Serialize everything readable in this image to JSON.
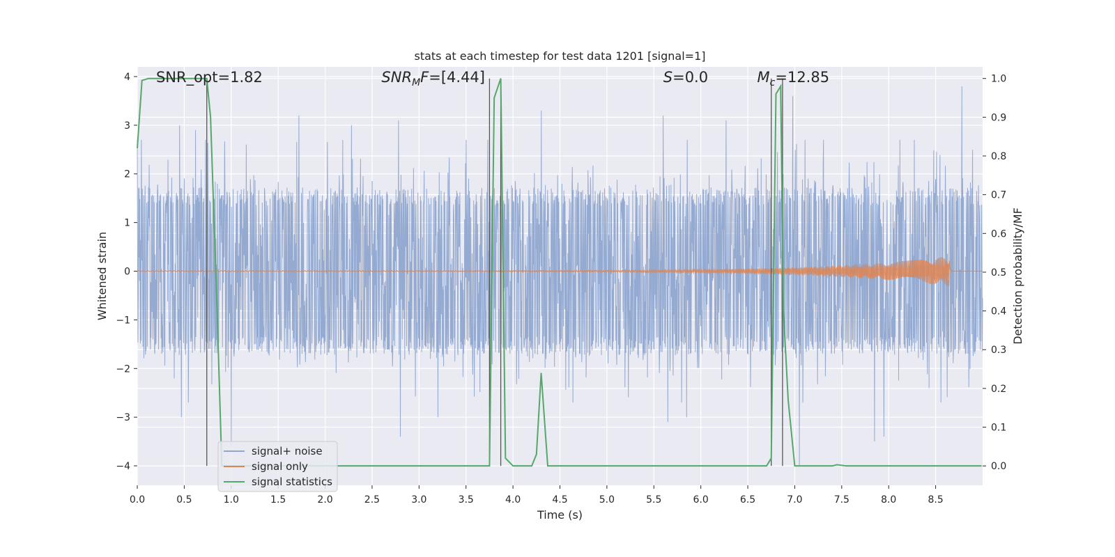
{
  "chart_data": {
    "type": "line",
    "title": "stats at each timestep for test data 1201 [signal=1]",
    "xlabel": "Time (s)",
    "ylabel_left": "Whitened strain",
    "ylabel_right": "Detection probability/MF",
    "xlim": [
      0.0,
      9.0
    ],
    "ylim_left": [
      -4.4,
      4.2
    ],
    "ylim_right": [
      -0.05,
      1.03
    ],
    "x_ticks": [
      0.0,
      0.5,
      1.0,
      1.5,
      2.0,
      2.5,
      3.0,
      3.5,
      4.0,
      4.5,
      5.0,
      5.5,
      6.0,
      6.5,
      7.0,
      7.5,
      8.0,
      8.5
    ],
    "x_tick_labels": [
      "0.0",
      "0.5",
      "1.0",
      "1.5",
      "2.0",
      "2.5",
      "3.0",
      "3.5",
      "4.0",
      "4.5",
      "5.0",
      "5.5",
      "6.0",
      "6.5",
      "7.0",
      "7.5",
      "8.0",
      "8.5"
    ],
    "y_left_ticks": [
      -4,
      -3,
      -2,
      -1,
      0,
      1,
      2,
      3,
      4
    ],
    "y_left_tick_labels": [
      "−4",
      "−3",
      "−2",
      "−1",
      "0",
      "1",
      "2",
      "3",
      "4"
    ],
    "y_right_ticks": [
      0.0,
      0.1,
      0.2,
      0.3,
      0.4,
      0.5,
      0.6,
      0.7,
      0.8,
      0.9,
      1.0
    ],
    "y_right_tick_labels": [
      "0.0",
      "0.1",
      "0.2",
      "0.3",
      "0.4",
      "0.5",
      "0.6",
      "0.7",
      "0.8",
      "0.9",
      "1.0"
    ],
    "grid": true,
    "legend_position": "lower-left",
    "series": [
      {
        "name": "signal+ noise",
        "color": "#8fa6cf",
        "axis": "left",
        "kind": "noise",
        "x_range": [
          0.0,
          9.0
        ],
        "typical_amplitude": 1.5,
        "peak_values": [
          {
            "x": 0.45,
            "y": 3.0
          },
          {
            "x": 0.62,
            "y": 2.9
          },
          {
            "x": 1.72,
            "y": 3.2
          },
          {
            "x": 2.28,
            "y": 3.0
          },
          {
            "x": 2.78,
            "y": 3.1
          },
          {
            "x": 4.3,
            "y": 3.3
          },
          {
            "x": 5.6,
            "y": 3.2
          },
          {
            "x": 6.27,
            "y": 3.1
          },
          {
            "x": 6.98,
            "y": 3.6
          },
          {
            "x": 8.78,
            "y": 3.8
          },
          {
            "x": 0.47,
            "y": -3.0
          },
          {
            "x": 2.8,
            "y": -3.4
          },
          {
            "x": 3.2,
            "y": -3.0
          },
          {
            "x": 5.65,
            "y": -3.1
          },
          {
            "x": 5.85,
            "y": -3.0
          },
          {
            "x": 7.05,
            "y": -4.0
          },
          {
            "x": 7.85,
            "y": -3.5
          },
          {
            "x": 7.95,
            "y": -3.4
          },
          {
            "x": 1.0,
            "y": -3.6
          }
        ]
      },
      {
        "name": "signal only",
        "color": "#dd8452",
        "axis": "left",
        "kind": "chirp",
        "x_range": [
          0.0,
          8.65
        ],
        "max_amplitude": 0.3
      },
      {
        "name": "signal statistics",
        "color": "#55a868",
        "axis": "right",
        "kind": "line",
        "x": [
          0.0,
          0.05,
          0.12,
          0.2,
          0.3,
          0.5,
          0.7,
          0.74,
          0.78,
          0.85,
          0.9,
          1.0,
          3.6,
          3.75,
          3.8,
          3.87,
          3.92,
          4.0,
          4.2,
          4.25,
          4.3,
          4.37,
          4.45,
          6.0,
          6.7,
          6.75,
          6.8,
          6.85,
          6.88,
          6.93,
          7.0,
          7.05,
          7.4,
          7.45,
          7.55,
          8.99
        ],
        "y": [
          0.82,
          0.995,
          1.0,
          1.0,
          1.0,
          1.0,
          1.0,
          1.0,
          0.9,
          0.4,
          0.0,
          0.0,
          0.0,
          0.0,
          0.95,
          1.0,
          0.02,
          0.0,
          0.0,
          0.03,
          0.24,
          0.0,
          0.0,
          0.0,
          0.0,
          0.02,
          0.96,
          0.98,
          0.4,
          0.17,
          0.0,
          0.0,
          0.0,
          0.003,
          0.0,
          0.0
        ]
      }
    ],
    "vertical_lines": [
      0.74,
      3.75,
      3.87,
      6.75,
      6.87
    ],
    "vertical_line_range_right": [
      0.0,
      1.0
    ],
    "annotations": [
      {
        "name": "snr-opt",
        "text": "SNR_opt=1.82",
        "x": 0.2,
        "y": 3.9
      },
      {
        "name": "snr-mf",
        "text": "SNR",
        "sub": "M",
        "tail": "F=[4.44]",
        "italic": true,
        "x": 2.6,
        "y": 3.9
      },
      {
        "name": "s-value",
        "text": "S",
        "tail": "=0.0",
        "italic": true,
        "x": 5.6,
        "y": 3.9
      },
      {
        "name": "mc-value",
        "text": "M",
        "sub": "c",
        "tail": "=12.85",
        "italic": true,
        "x": 6.6,
        "y": 3.9
      }
    ]
  }
}
